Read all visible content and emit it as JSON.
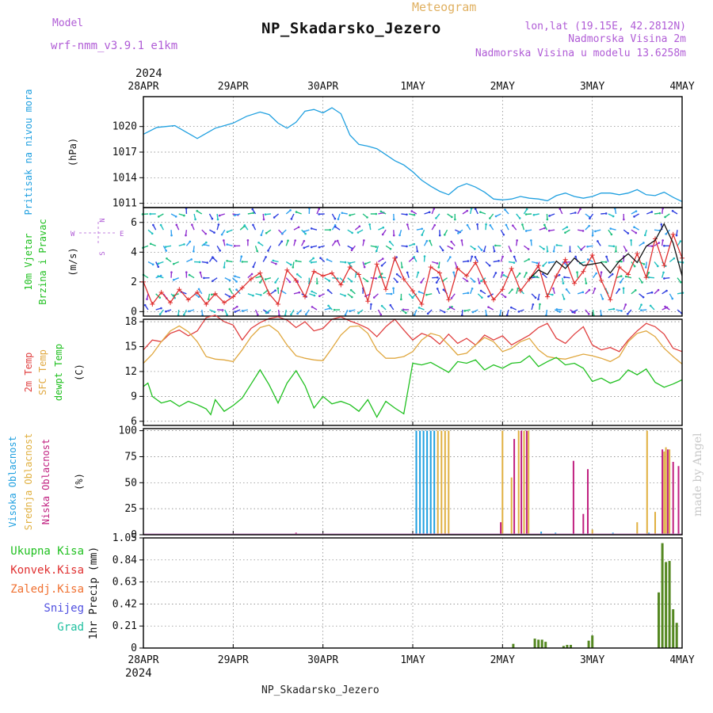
{
  "header": {
    "model_label": "Model",
    "model_name": "wrf-nmm_v3.9.1 e1km",
    "meteogram_label": "Meteogram",
    "station_title": "NP_Skadarsko_Jezero",
    "lonlat": "lon,lat (19.15E, 42.2812N)",
    "altitude": "Nadmorska Visina 2m",
    "model_altitude": "Nadmorska Visina u modelu 13.6258m",
    "colors": {
      "meta": "#b05cd6",
      "meteogram": "#e0b060",
      "title": "#111111"
    }
  },
  "footer": {
    "station": "NP_Skadarsko_Jezero",
    "credit": "made by Angel"
  },
  "time_axis": {
    "year": "2024",
    "labels": [
      "28APR",
      "29APR",
      "30APR",
      "1MAY",
      "2MAY",
      "3MAY",
      "4MAY"
    ],
    "day_range": [
      0,
      6
    ]
  },
  "chart_data": [
    {
      "id": "pressure",
      "type": "line",
      "ylabel": [
        "Pritisak na nivou mora",
        "(hPa)"
      ],
      "ylim": [
        1010.5,
        1023.5
      ],
      "yticks": [
        "1011",
        "1014",
        "1017",
        "1020"
      ],
      "grid": true,
      "series": [
        {
          "color": "#20a0e0",
          "x": [
            0,
            0.15,
            0.35,
            0.5,
            0.6,
            0.7,
            0.8,
            0.9,
            1.0,
            1.15,
            1.3,
            1.4,
            1.5,
            1.6,
            1.7,
            1.8,
            1.9,
            2.0,
            2.1,
            2.2,
            2.3,
            2.4,
            2.5,
            2.6,
            2.7,
            2.8,
            2.9,
            3.0,
            3.1,
            3.2,
            3.3,
            3.4,
            3.5,
            3.6,
            3.7,
            3.8,
            3.9,
            4.0,
            4.1,
            4.2,
            4.3,
            4.4,
            4.5,
            4.6,
            4.7,
            4.8,
            4.9,
            5.0,
            5.1,
            5.2,
            5.3,
            5.4,
            5.5,
            5.6,
            5.7,
            5.8,
            5.9,
            6.0
          ],
          "y": [
            1019.1,
            1019.9,
            1020.1,
            1019.2,
            1018.6,
            1019.2,
            1019.8,
            1020.1,
            1020.4,
            1021.2,
            1021.7,
            1021.4,
            1020.4,
            1019.8,
            1020.5,
            1021.8,
            1022.0,
            1021.6,
            1022.2,
            1021.5,
            1019.0,
            1017.9,
            1017.7,
            1017.4,
            1016.7,
            1016.0,
            1015.5,
            1014.7,
            1013.7,
            1013.0,
            1012.4,
            1012.0,
            1012.9,
            1013.3,
            1012.9,
            1012.3,
            1011.5,
            1011.4,
            1011.5,
            1011.8,
            1011.6,
            1011.5,
            1011.3,
            1011.9,
            1012.2,
            1011.8,
            1011.6,
            1011.8,
            1012.2,
            1012.2,
            1012.0,
            1012.2,
            1012.6,
            1012.0,
            1011.9,
            1012.3,
            1011.7,
            1011.2
          ]
        }
      ]
    },
    {
      "id": "wind",
      "type": "line",
      "ylabel": [
        "10m Vjetar",
        "Brzina i Pravac",
        "(m/s)"
      ],
      "compass": {
        "north": "N",
        "south": "S",
        "west": "W",
        "east": "E"
      },
      "ylim": [
        -0.3,
        7
      ],
      "yticks": [
        "0",
        "2",
        "4",
        "6"
      ],
      "grid": true,
      "series": [
        {
          "color": "#e03030",
          "x": [
            0,
            0.1,
            0.2,
            0.3,
            0.4,
            0.5,
            0.6,
            0.7,
            0.8,
            0.9,
            1.0,
            1.1,
            1.2,
            1.3,
            1.4,
            1.5,
            1.6,
            1.7,
            1.8,
            1.9,
            2.0,
            2.1,
            2.2,
            2.3,
            2.4,
            2.5,
            2.6,
            2.7,
            2.8,
            2.9,
            3.0,
            3.1,
            3.2,
            3.3,
            3.4,
            3.5,
            3.6,
            3.7,
            3.8,
            3.9,
            4.0,
            4.1,
            4.2,
            4.3,
            4.4,
            4.5,
            4.6,
            4.7,
            4.8,
            4.9,
            5.0,
            5.1,
            5.2,
            5.3,
            5.4,
            5.5,
            5.6,
            5.7,
            5.8,
            5.9,
            6.0
          ],
          "y": [
            2.0,
            0.5,
            1.3,
            0.6,
            1.5,
            0.8,
            1.3,
            0.5,
            1.2,
            0.6,
            1.0,
            1.6,
            2.2,
            2.6,
            1.2,
            0.5,
            2.8,
            2.1,
            1.0,
            2.7,
            2.4,
            2.6,
            1.8,
            3.0,
            2.5,
            0.7,
            3.2,
            1.5,
            3.6,
            2.2,
            1.4,
            0.5,
            3.0,
            2.6,
            0.8,
            2.9,
            2.4,
            3.3,
            2.0,
            0.8,
            1.5,
            2.9,
            1.4,
            2.2,
            3.1,
            1.0,
            2.4,
            3.5,
            1.9,
            2.7,
            3.8,
            2.1,
            0.8,
            3.0,
            2.5,
            3.9,
            2.3,
            4.9,
            3.1,
            5.2,
            3.6
          ]
        },
        {
          "color": "#111111",
          "x": [
            4.3,
            4.4,
            4.5,
            4.6,
            4.7,
            4.8,
            4.9,
            5.0,
            5.1,
            5.2,
            5.3,
            5.4,
            5.5,
            5.6,
            5.7,
            5.8,
            5.9,
            6.0
          ],
          "y": [
            2.2,
            2.8,
            2.5,
            3.4,
            2.9,
            3.6,
            3.1,
            3.2,
            3.3,
            2.6,
            3.4,
            3.9,
            3.3,
            4.4,
            4.8,
            5.9,
            4.6,
            2.4
          ]
        }
      ]
    },
    {
      "id": "temperature",
      "type": "line",
      "ylabel": [
        "2m Temp",
        "SFC Temp",
        "dewpt Temp",
        "(C)"
      ],
      "ylim": [
        5.5,
        18.3
      ],
      "yticks": [
        "6",
        "9",
        "12",
        "15",
        "18"
      ],
      "grid": true,
      "series": [
        {
          "name": "2m Temp",
          "color": "#e04040",
          "x": [
            0,
            0.1,
            0.2,
            0.3,
            0.4,
            0.5,
            0.6,
            0.7,
            0.8,
            0.9,
            1.0,
            1.1,
            1.2,
            1.3,
            1.4,
            1.5,
            1.6,
            1.7,
            1.8,
            1.9,
            2.0,
            2.1,
            2.2,
            2.3,
            2.4,
            2.5,
            2.6,
            2.7,
            2.8,
            2.9,
            3.0,
            3.1,
            3.2,
            3.3,
            3.4,
            3.5,
            3.6,
            3.7,
            3.8,
            3.9,
            4.0,
            4.1,
            4.2,
            4.3,
            4.4,
            4.5,
            4.6,
            4.7,
            4.8,
            4.9,
            5.0,
            5.1,
            5.2,
            5.3,
            5.4,
            5.5,
            5.6,
            5.7,
            5.8,
            5.9,
            6.0
          ],
          "y": [
            14.6,
            15.8,
            15.6,
            16.6,
            17.0,
            16.3,
            16.9,
            18.5,
            18.8,
            18.0,
            17.6,
            15.8,
            17.2,
            17.9,
            18.4,
            18.6,
            18.2,
            17.3,
            18.0,
            16.9,
            17.2,
            18.3,
            18.6,
            18.1,
            17.7,
            17.2,
            16.2,
            17.4,
            18.3,
            17.0,
            15.8,
            16.6,
            16.2,
            15.3,
            16.5,
            15.4,
            16.0,
            15.2,
            16.4,
            15.8,
            16.3,
            15.2,
            15.8,
            16.4,
            17.3,
            17.8,
            16.0,
            15.4,
            16.5,
            17.4,
            15.2,
            14.6,
            14.9,
            14.4,
            15.8,
            16.9,
            17.8,
            17.4,
            16.5,
            14.8,
            14.4
          ]
        },
        {
          "name": "SFC Temp",
          "color": "#e0a840",
          "x": [
            0,
            0.1,
            0.2,
            0.3,
            0.4,
            0.5,
            0.6,
            0.7,
            0.8,
            0.9,
            1.0,
            1.1,
            1.2,
            1.3,
            1.4,
            1.5,
            1.6,
            1.7,
            1.8,
            1.9,
            2.0,
            2.1,
            2.2,
            2.3,
            2.4,
            2.5,
            2.6,
            2.7,
            2.8,
            2.9,
            3.0,
            3.1,
            3.2,
            3.3,
            3.4,
            3.5,
            3.6,
            3.7,
            3.8,
            3.9,
            4.0,
            4.1,
            4.2,
            4.3,
            4.4,
            4.5,
            4.6,
            4.7,
            4.8,
            4.9,
            5.0,
            5.1,
            5.2,
            5.3,
            5.4,
            5.5,
            5.6,
            5.7,
            5.8,
            5.9,
            6.0
          ],
          "y": [
            13.0,
            14.1,
            15.6,
            16.9,
            17.5,
            16.8,
            15.6,
            13.8,
            13.5,
            13.4,
            13.2,
            14.6,
            16.2,
            17.3,
            17.6,
            16.8,
            15.2,
            13.9,
            13.6,
            13.4,
            13.3,
            14.8,
            16.4,
            17.4,
            17.5,
            16.6,
            14.6,
            13.6,
            13.6,
            13.8,
            14.4,
            15.8,
            16.6,
            16.3,
            15.2,
            14.0,
            14.2,
            15.2,
            16.1,
            15.6,
            14.4,
            14.8,
            15.6,
            16.0,
            14.6,
            13.8,
            13.6,
            13.5,
            13.8,
            14.1,
            13.9,
            13.6,
            13.2,
            13.8,
            15.6,
            16.6,
            16.9,
            16.2,
            14.8,
            13.8,
            12.9
          ]
        },
        {
          "name": "dewpt Temp",
          "color": "#20c020",
          "x": [
            0,
            0.05,
            0.1,
            0.2,
            0.3,
            0.4,
            0.5,
            0.6,
            0.7,
            0.75,
            0.8,
            0.9,
            1.0,
            1.1,
            1.2,
            1.3,
            1.4,
            1.5,
            1.6,
            1.7,
            1.8,
            1.9,
            2.0,
            2.1,
            2.2,
            2.3,
            2.4,
            2.5,
            2.6,
            2.7,
            2.8,
            2.9,
            3.0,
            3.1,
            3.2,
            3.3,
            3.4,
            3.5,
            3.6,
            3.7,
            3.8,
            3.9,
            4.0,
            4.1,
            4.2,
            4.3,
            4.4,
            4.5,
            4.6,
            4.7,
            4.8,
            4.9,
            5.0,
            5.1,
            5.2,
            5.3,
            5.4,
            5.5,
            5.6,
            5.7,
            5.8,
            5.9,
            6.0
          ],
          "y": [
            10.2,
            10.6,
            9.0,
            8.2,
            8.5,
            7.8,
            8.4,
            8.0,
            7.5,
            6.8,
            8.6,
            7.2,
            7.9,
            8.8,
            10.5,
            12.2,
            10.4,
            8.2,
            10.6,
            12.1,
            10.3,
            7.6,
            9.0,
            8.1,
            8.4,
            8.0,
            7.2,
            8.6,
            6.5,
            8.4,
            7.6,
            6.9,
            13.0,
            12.8,
            13.1,
            12.5,
            11.9,
            13.2,
            13.0,
            13.4,
            12.2,
            12.8,
            12.4,
            13.0,
            13.1,
            13.9,
            12.6,
            13.2,
            13.7,
            12.8,
            13.0,
            12.4,
            10.8,
            11.2,
            10.6,
            11.0,
            12.2,
            11.6,
            12.3,
            10.7,
            10.1,
            10.5,
            11.0
          ]
        }
      ]
    },
    {
      "id": "cloud",
      "type": "bar",
      "ylabel": [
        "Visoka Oblacnost",
        "Srednja Oblacnost",
        "Niska Oblacnost",
        "(%)"
      ],
      "ylim": [
        0,
        102
      ],
      "yticks": [
        "0",
        "25",
        "50",
        "75",
        "100"
      ],
      "grid": true,
      "series": [
        {
          "name": "Visoka Oblacnost",
          "color": "#20a0e0",
          "x": [
            3.04,
            3.08,
            3.12,
            3.16,
            3.2,
            3.24,
            4.43,
            4.59,
            4.84,
            5.23,
            5.63
          ],
          "y": [
            100,
            100,
            100,
            100,
            100,
            100,
            3,
            2,
            1,
            2,
            2
          ]
        },
        {
          "name": "Srednja Oblacnost",
          "color": "#e0b040",
          "x": [
            3.28,
            3.32,
            3.36,
            3.4,
            4.0,
            4.1,
            4.18,
            4.24,
            4.29,
            5.0,
            5.5,
            5.61,
            5.7,
            5.8,
            5.82,
            5.86
          ],
          "y": [
            100,
            100,
            100,
            100,
            100,
            55,
            100,
            100,
            100,
            5,
            12,
            100,
            22,
            80,
            84,
            82
          ]
        },
        {
          "name": "Niska Oblacnost",
          "color": "#c02080",
          "x": [
            1.7,
            3.98,
            4.13,
            4.21,
            4.27,
            4.65,
            4.75,
            4.79,
            4.9,
            4.95,
            5.0,
            5.46,
            5.78,
            5.84,
            5.9,
            5.96
          ],
          "y": [
            2,
            12,
            92,
            100,
            100,
            1,
            1,
            71,
            20,
            63,
            1,
            1,
            82,
            82,
            70,
            66
          ]
        }
      ]
    },
    {
      "id": "precip",
      "type": "bar",
      "ylabel": [
        "1hr Precip (mm)"
      ],
      "legend": [
        {
          "name": "Ukupna Kisa",
          "color": "#20c020"
        },
        {
          "name": "Konvek.Kisa",
          "color": "#e03030"
        },
        {
          "name": "Zaledj.Kisa",
          "color": "#f07030"
        },
        {
          "name": "Snijeg",
          "color": "#5050e0"
        },
        {
          "name": "Grad",
          "color": "#20c0a0"
        }
      ],
      "ylim": [
        0,
        1.05
      ],
      "yticks": [
        "0",
        "0.21",
        "0.42",
        "0.63",
        "0.84",
        "1.05"
      ],
      "grid": true,
      "series": [
        {
          "name": "Ukupna Kisa",
          "color": "#558822",
          "x": [
            4.12,
            4.36,
            4.4,
            4.44,
            4.48,
            4.68,
            4.72,
            4.76,
            4.96,
            5.0,
            5.74,
            5.78,
            5.82,
            5.86,
            5.9,
            5.94
          ],
          "y": [
            0.04,
            0.09,
            0.08,
            0.08,
            0.06,
            0.02,
            0.03,
            0.03,
            0.07,
            0.12,
            0.53,
            1.0,
            0.82,
            0.83,
            0.37,
            0.24
          ]
        }
      ]
    }
  ]
}
